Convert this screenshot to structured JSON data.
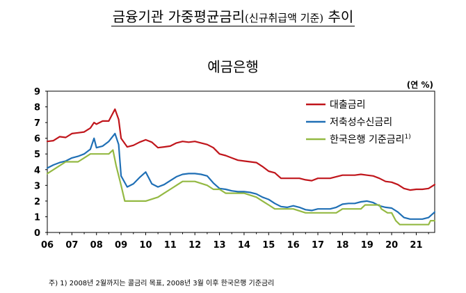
{
  "page": {
    "title_main": "금융기관 가중평균금리",
    "title_paren": "(신규취급액 기준)",
    "title_tail": "추이",
    "chart_title": "예금은행",
    "unit": "(연 %)",
    "footnote": "주) 1) 2008년 2월까지는 콜금리 목표, 2008년 3월 이후 한국은행 기준금리"
  },
  "chart_data": {
    "type": "line",
    "title": "예금은행",
    "xlabel": "",
    "ylabel": "",
    "x_tick_labels": [
      "06",
      "07",
      "08",
      "09",
      "10",
      "11",
      "12",
      "13",
      "14",
      "15",
      "16",
      "17",
      "18",
      "19",
      "20",
      "21"
    ],
    "xlim": [
      2006.0,
      2021.75
    ],
    "y_ticks": [
      0,
      1,
      2,
      3,
      4,
      5,
      6,
      7,
      8,
      9
    ],
    "ylim": [
      0,
      9
    ],
    "grid": false,
    "legend_position": "top-right",
    "series": [
      {
        "name": "대출금리",
        "color": "#c0151b",
        "points": [
          [
            2006.0,
            5.8
          ],
          [
            2006.25,
            5.85
          ],
          [
            2006.5,
            6.1
          ],
          [
            2006.75,
            6.05
          ],
          [
            2007.0,
            6.3
          ],
          [
            2007.25,
            6.35
          ],
          [
            2007.5,
            6.4
          ],
          [
            2007.75,
            6.65
          ],
          [
            2007.9,
            7.0
          ],
          [
            2008.0,
            6.9
          ],
          [
            2008.25,
            7.1
          ],
          [
            2008.5,
            7.1
          ],
          [
            2008.75,
            7.85
          ],
          [
            2008.9,
            7.2
          ],
          [
            2009.0,
            6.0
          ],
          [
            2009.25,
            5.45
          ],
          [
            2009.5,
            5.55
          ],
          [
            2009.75,
            5.75
          ],
          [
            2010.0,
            5.9
          ],
          [
            2010.25,
            5.75
          ],
          [
            2010.5,
            5.4
          ],
          [
            2010.75,
            5.45
          ],
          [
            2011.0,
            5.5
          ],
          [
            2011.25,
            5.7
          ],
          [
            2011.5,
            5.8
          ],
          [
            2011.75,
            5.75
          ],
          [
            2012.0,
            5.8
          ],
          [
            2012.25,
            5.7
          ],
          [
            2012.5,
            5.6
          ],
          [
            2012.75,
            5.4
          ],
          [
            2013.0,
            5.0
          ],
          [
            2013.25,
            4.9
          ],
          [
            2013.5,
            4.75
          ],
          [
            2013.75,
            4.6
          ],
          [
            2014.0,
            4.55
          ],
          [
            2014.25,
            4.5
          ],
          [
            2014.5,
            4.45
          ],
          [
            2014.75,
            4.2
          ],
          [
            2015.0,
            3.9
          ],
          [
            2015.25,
            3.8
          ],
          [
            2015.5,
            3.45
          ],
          [
            2015.75,
            3.45
          ],
          [
            2016.0,
            3.45
          ],
          [
            2016.25,
            3.45
          ],
          [
            2016.5,
            3.35
          ],
          [
            2016.75,
            3.3
          ],
          [
            2017.0,
            3.45
          ],
          [
            2017.25,
            3.45
          ],
          [
            2017.5,
            3.45
          ],
          [
            2017.75,
            3.55
          ],
          [
            2018.0,
            3.65
          ],
          [
            2018.25,
            3.65
          ],
          [
            2018.5,
            3.65
          ],
          [
            2018.75,
            3.7
          ],
          [
            2019.0,
            3.65
          ],
          [
            2019.25,
            3.6
          ],
          [
            2019.5,
            3.45
          ],
          [
            2019.75,
            3.25
          ],
          [
            2020.0,
            3.2
          ],
          [
            2020.25,
            3.05
          ],
          [
            2020.5,
            2.8
          ],
          [
            2020.75,
            2.7
          ],
          [
            2021.0,
            2.75
          ],
          [
            2021.25,
            2.75
          ],
          [
            2021.5,
            2.8
          ],
          [
            2021.75,
            3.05
          ]
        ]
      },
      {
        "name": "저축성수신금리",
        "color": "#1f6fb5",
        "points": [
          [
            2006.0,
            4.1
          ],
          [
            2006.25,
            4.3
          ],
          [
            2006.5,
            4.45
          ],
          [
            2006.75,
            4.55
          ],
          [
            2007.0,
            4.75
          ],
          [
            2007.25,
            4.85
          ],
          [
            2007.5,
            5.0
          ],
          [
            2007.75,
            5.3
          ],
          [
            2007.9,
            6.0
          ],
          [
            2008.0,
            5.4
          ],
          [
            2008.25,
            5.5
          ],
          [
            2008.5,
            5.8
          ],
          [
            2008.75,
            6.3
          ],
          [
            2008.9,
            5.6
          ],
          [
            2009.0,
            3.6
          ],
          [
            2009.25,
            2.9
          ],
          [
            2009.5,
            3.1
          ],
          [
            2009.75,
            3.5
          ],
          [
            2010.0,
            3.85
          ],
          [
            2010.25,
            3.1
          ],
          [
            2010.5,
            2.9
          ],
          [
            2010.75,
            3.05
          ],
          [
            2011.0,
            3.3
          ],
          [
            2011.25,
            3.55
          ],
          [
            2011.5,
            3.7
          ],
          [
            2011.75,
            3.75
          ],
          [
            2012.0,
            3.75
          ],
          [
            2012.25,
            3.7
          ],
          [
            2012.5,
            3.6
          ],
          [
            2012.75,
            3.15
          ],
          [
            2013.0,
            2.8
          ],
          [
            2013.25,
            2.75
          ],
          [
            2013.5,
            2.65
          ],
          [
            2013.75,
            2.6
          ],
          [
            2014.0,
            2.6
          ],
          [
            2014.25,
            2.55
          ],
          [
            2014.5,
            2.45
          ],
          [
            2014.75,
            2.25
          ],
          [
            2015.0,
            2.1
          ],
          [
            2015.25,
            1.85
          ],
          [
            2015.5,
            1.65
          ],
          [
            2015.75,
            1.6
          ],
          [
            2016.0,
            1.7
          ],
          [
            2016.25,
            1.6
          ],
          [
            2016.5,
            1.45
          ],
          [
            2016.75,
            1.4
          ],
          [
            2017.0,
            1.5
          ],
          [
            2017.25,
            1.5
          ],
          [
            2017.5,
            1.5
          ],
          [
            2017.75,
            1.6
          ],
          [
            2018.0,
            1.8
          ],
          [
            2018.25,
            1.85
          ],
          [
            2018.5,
            1.85
          ],
          [
            2018.75,
            1.95
          ],
          [
            2019.0,
            2.0
          ],
          [
            2019.25,
            1.9
          ],
          [
            2019.5,
            1.7
          ],
          [
            2019.75,
            1.6
          ],
          [
            2020.0,
            1.55
          ],
          [
            2020.25,
            1.3
          ],
          [
            2020.5,
            0.95
          ],
          [
            2020.75,
            0.85
          ],
          [
            2021.0,
            0.85
          ],
          [
            2021.25,
            0.85
          ],
          [
            2021.5,
            0.95
          ],
          [
            2021.75,
            1.3
          ]
        ]
      },
      {
        "name": "한국은행 기준금리",
        "name_sup": "1)",
        "color": "#94b943",
        "points": [
          [
            2006.0,
            3.75
          ],
          [
            2006.25,
            4.0
          ],
          [
            2006.5,
            4.25
          ],
          [
            2006.75,
            4.5
          ],
          [
            2007.0,
            4.5
          ],
          [
            2007.25,
            4.5
          ],
          [
            2007.5,
            4.75
          ],
          [
            2007.75,
            5.0
          ],
          [
            2008.0,
            5.0
          ],
          [
            2008.25,
            5.0
          ],
          [
            2008.5,
            5.0
          ],
          [
            2008.67,
            5.25
          ],
          [
            2008.8,
            4.25
          ],
          [
            2009.0,
            3.0
          ],
          [
            2009.15,
            2.0
          ],
          [
            2009.5,
            2.0
          ],
          [
            2010.0,
            2.0
          ],
          [
            2010.5,
            2.25
          ],
          [
            2010.75,
            2.5
          ],
          [
            2011.0,
            2.75
          ],
          [
            2011.25,
            3.0
          ],
          [
            2011.5,
            3.25
          ],
          [
            2012.0,
            3.25
          ],
          [
            2012.5,
            3.0
          ],
          [
            2012.75,
            2.75
          ],
          [
            2013.0,
            2.75
          ],
          [
            2013.25,
            2.5
          ],
          [
            2013.75,
            2.5
          ],
          [
            2014.0,
            2.5
          ],
          [
            2014.5,
            2.25
          ],
          [
            2014.75,
            2.0
          ],
          [
            2015.0,
            1.75
          ],
          [
            2015.25,
            1.5
          ],
          [
            2016.0,
            1.5
          ],
          [
            2016.5,
            1.25
          ],
          [
            2017.0,
            1.25
          ],
          [
            2017.75,
            1.25
          ],
          [
            2018.0,
            1.5
          ],
          [
            2018.75,
            1.5
          ],
          [
            2018.92,
            1.75
          ],
          [
            2019.5,
            1.75
          ],
          [
            2019.58,
            1.5
          ],
          [
            2019.83,
            1.25
          ],
          [
            2020.0,
            1.25
          ],
          [
            2020.17,
            0.75
          ],
          [
            2020.33,
            0.5
          ],
          [
            2020.75,
            0.5
          ],
          [
            2021.5,
            0.5
          ],
          [
            2021.58,
            0.75
          ],
          [
            2021.75,
            0.75
          ]
        ]
      }
    ]
  }
}
